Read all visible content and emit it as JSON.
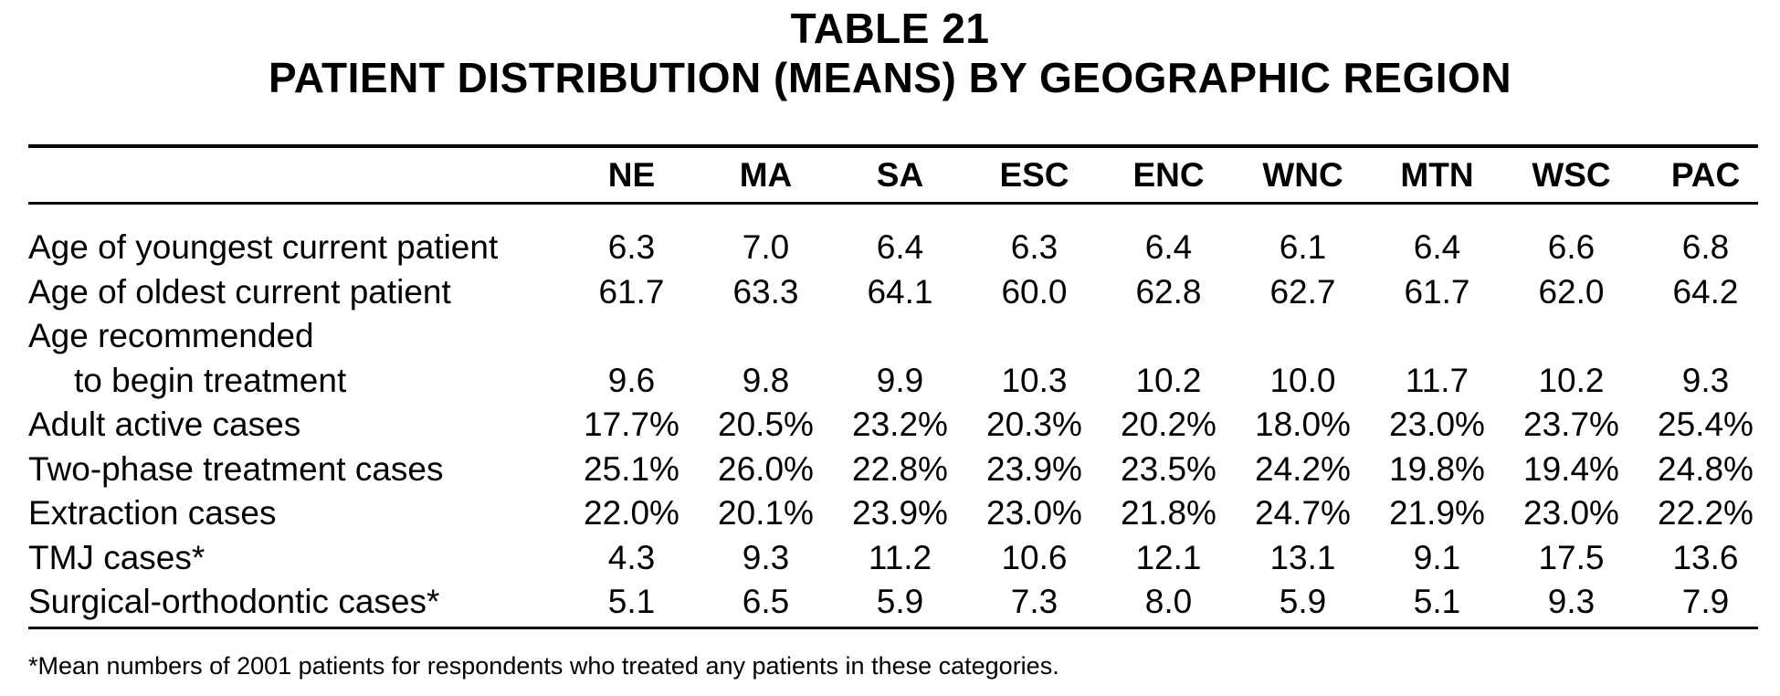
{
  "title": {
    "line1": "TABLE 21",
    "line2": "PATIENT DISTRIBUTION (MEANS) BY GEOGRAPHIC REGION"
  },
  "table": {
    "columns": [
      "NE",
      "MA",
      "SA",
      "ESC",
      "ENC",
      "WNC",
      "MTN",
      "WSC",
      "PAC"
    ],
    "rows": [
      {
        "label": "Age of youngest current patient",
        "values": [
          "6.3",
          "7.0",
          "6.4",
          "6.3",
          "6.4",
          "6.1",
          "6.4",
          "6.6",
          "6.8"
        ]
      },
      {
        "label": "Age of oldest current patient",
        "values": [
          "61.7",
          "63.3",
          "64.1",
          "60.0",
          "62.8",
          "62.7",
          "61.7",
          "62.0",
          "64.2"
        ]
      },
      {
        "label": "Age recommended",
        "values": []
      },
      {
        "label": "to begin treatment",
        "values": [
          "9.6",
          "9.8",
          "9.9",
          "10.3",
          "10.2",
          "10.0",
          "11.7",
          "10.2",
          "9.3"
        ]
      },
      {
        "label": "Adult active cases",
        "values": [
          "17.7%",
          "20.5%",
          "23.2%",
          "20.3%",
          "20.2%",
          "18.0%",
          "23.0%",
          "23.7%",
          "25.4%"
        ]
      },
      {
        "label": "Two-phase treatment cases",
        "values": [
          "25.1%",
          "26.0%",
          "22.8%",
          "23.9%",
          "23.5%",
          "24.2%",
          "19.8%",
          "19.4%",
          "24.8%"
        ]
      },
      {
        "label": "Extraction cases",
        "values": [
          "22.0%",
          "20.1%",
          "23.9%",
          "23.0%",
          "21.8%",
          "24.7%",
          "21.9%",
          "23.0%",
          "22.2%"
        ]
      },
      {
        "label": "TMJ cases*",
        "values": [
          "4.3",
          "9.3",
          "11.2",
          "10.6",
          "12.1",
          "13.1",
          "9.1",
          "17.5",
          "13.6"
        ]
      },
      {
        "label": "Surgical-orthodontic cases*",
        "values": [
          "5.1",
          "6.5",
          "5.9",
          "7.3",
          "8.0",
          "5.9",
          "5.1",
          "9.3",
          "7.9"
        ]
      }
    ]
  },
  "footnote": "*Mean numbers of 2001 patients for respondents who treated any patients in these categories."
}
